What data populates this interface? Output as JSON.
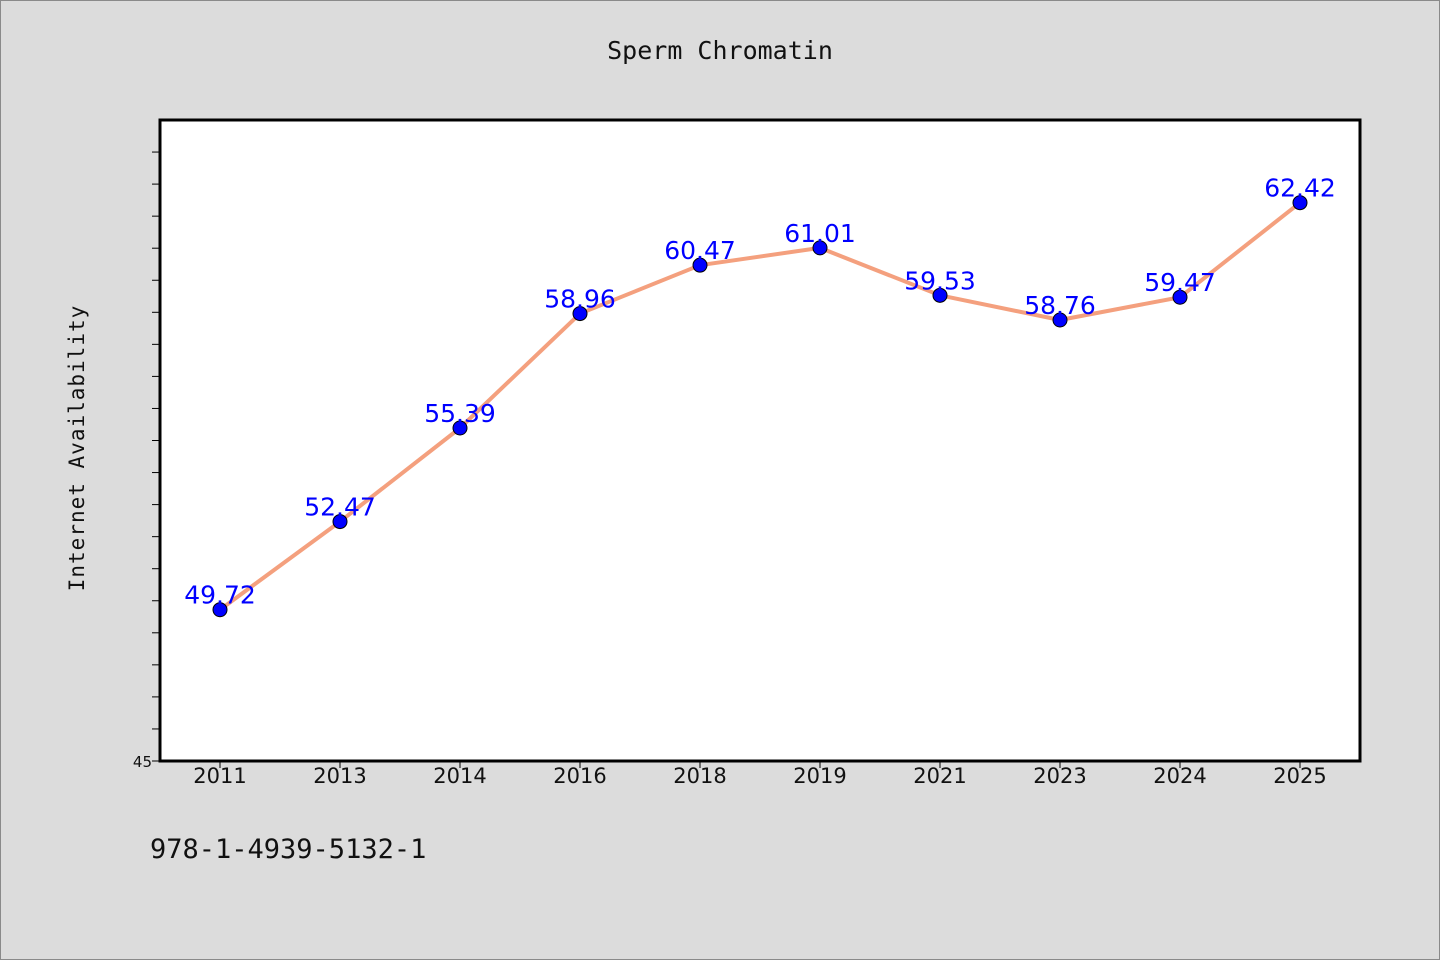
{
  "chart_data": {
    "type": "line",
    "title": "Sperm Chromatin",
    "xlabel": "",
    "ylabel": "Internet Availability",
    "categories": [
      "2011",
      "2013",
      "2014",
      "2016",
      "2018",
      "2019",
      "2021",
      "2023",
      "2024",
      "2025"
    ],
    "series": [
      {
        "values": [
          49.72,
          52.47,
          55.39,
          58.96,
          60.47,
          61.01,
          59.53,
          58.76,
          59.47,
          62.42
        ]
      }
    ],
    "data_labels": [
      "49.72",
      "52.47",
      "55.39",
      "58.96",
      "60.47",
      "61.01",
      "59.53",
      "58.76",
      "59.47",
      "62.42"
    ],
    "ylim": [
      45,
      65
    ],
    "y_tick_labels": [
      "45"
    ],
    "grid": false,
    "legend": "none",
    "colors": {
      "line": "#f4a07e",
      "marker": "#0000ff",
      "marker_edge": "#000000",
      "data_label": "#0000ff",
      "background": "#dcdcdc",
      "plot_background": "#ffffff"
    }
  },
  "footer": {
    "code": "978-1-4939-5132-1"
  }
}
